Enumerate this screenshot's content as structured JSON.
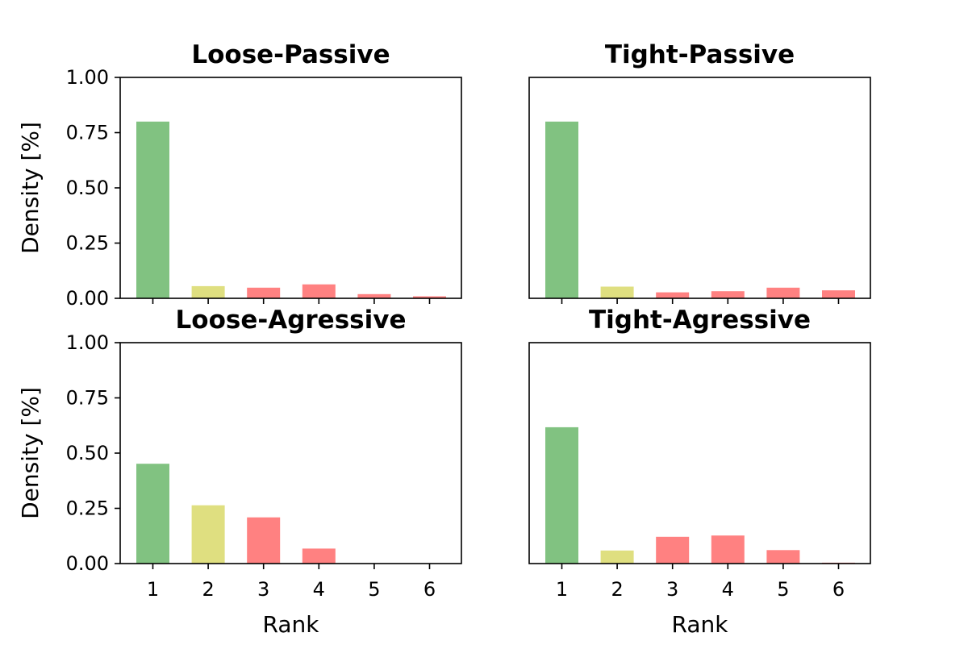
{
  "chart_data": [
    {
      "type": "bar",
      "title": "Loose-Passive",
      "categories": [
        "1",
        "2",
        "3",
        "4",
        "5",
        "6"
      ],
      "values": [
        0.8,
        0.055,
        0.048,
        0.063,
        0.019,
        0.009
      ],
      "colors": [
        "#81c281",
        "#dfdf80",
        "#ff8181",
        "#ff8181",
        "#ff8181",
        "#ff8181"
      ],
      "xlabel": "",
      "ylabel": "Density [%]",
      "ylim": [
        0,
        1
      ],
      "yticks": [
        "0.00",
        "0.25",
        "0.50",
        "0.75",
        "1.00"
      ],
      "grid": false
    },
    {
      "type": "bar",
      "title": "Tight-Passive",
      "categories": [
        "1",
        "2",
        "3",
        "4",
        "5",
        "6"
      ],
      "values": [
        0.8,
        0.053,
        0.027,
        0.032,
        0.048,
        0.036
      ],
      "colors": [
        "#81c281",
        "#dfdf80",
        "#ff8181",
        "#ff8181",
        "#ff8181",
        "#ff8181"
      ],
      "xlabel": "",
      "ylabel": "",
      "ylim": [
        0,
        1
      ],
      "yticks": [],
      "grid": false
    },
    {
      "type": "bar",
      "title": "Loose-Agressive",
      "categories": [
        "1",
        "2",
        "3",
        "4",
        "5",
        "6"
      ],
      "values": [
        0.452,
        0.264,
        0.209,
        0.068,
        0.0,
        0.0
      ],
      "colors": [
        "#81c281",
        "#dfdf80",
        "#ff8181",
        "#ff8181",
        "#ff8181",
        "#ff8181"
      ],
      "xlabel": "Rank",
      "ylabel": "Density [%]",
      "ylim": [
        0,
        1
      ],
      "yticks": [
        "0.00",
        "0.25",
        "0.50",
        "0.75",
        "1.00"
      ],
      "grid": false
    },
    {
      "type": "bar",
      "title": "Tight-Agressive",
      "categories": [
        "1",
        "2",
        "3",
        "4",
        "5",
        "6"
      ],
      "values": [
        0.617,
        0.059,
        0.121,
        0.127,
        0.061,
        0.004
      ],
      "colors": [
        "#81c281",
        "#dfdf80",
        "#ff8181",
        "#ff8181",
        "#ff8181",
        "#ff8181"
      ],
      "xlabel": "Rank",
      "ylabel": "",
      "ylim": [
        0,
        1
      ],
      "yticks": [],
      "grid": false
    }
  ]
}
